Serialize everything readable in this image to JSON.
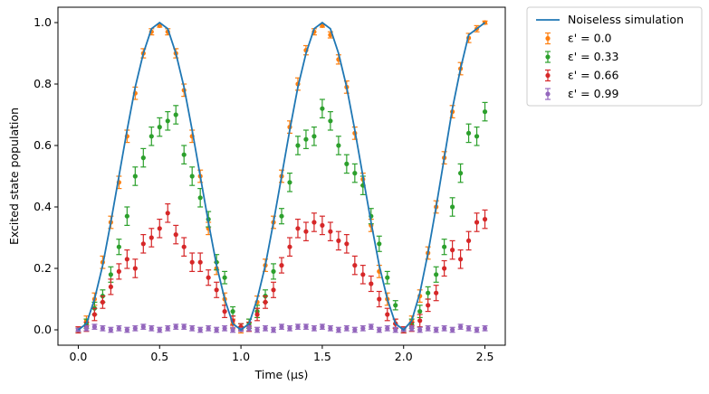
{
  "chart_data": {
    "type": "scatter",
    "xlabel": "Time (μs)",
    "ylabel": "Excited state population",
    "xlim": [
      -0.125,
      2.625
    ],
    "ylim": [
      -0.05,
      1.05
    ],
    "xticks": [
      0.0,
      0.5,
      1.0,
      1.5,
      2.0,
      2.5
    ],
    "xtick_labels": [
      "0.0",
      "0.5",
      "1.0",
      "1.5",
      "2.0",
      "2.5"
    ],
    "yticks": [
      0.0,
      0.2,
      0.4,
      0.6,
      0.8,
      1.0
    ],
    "ytick_labels": [
      "0.0",
      "0.2",
      "0.4",
      "0.6",
      "0.8",
      "1.0"
    ],
    "grid": false,
    "legend_position": "outside-right-top",
    "line": {
      "name": "Noiseless simulation",
      "color": "#1f77b4",
      "x": [
        0.0,
        0.05,
        0.1,
        0.15,
        0.2,
        0.25,
        0.3,
        0.35,
        0.4,
        0.45,
        0.5,
        0.55,
        0.6,
        0.65,
        0.7,
        0.75,
        0.8,
        0.85,
        0.9,
        0.95,
        1.0,
        1.05,
        1.1,
        1.15,
        1.2,
        1.25,
        1.3,
        1.35,
        1.4,
        1.45,
        1.5,
        1.55,
        1.6,
        1.65,
        1.7,
        1.75,
        1.8,
        1.85,
        1.9,
        1.95,
        2.0,
        2.05,
        2.1,
        2.15,
        2.2,
        2.25,
        2.3,
        2.35,
        2.4,
        2.45,
        2.5
      ],
      "y": [
        0.0,
        0.02,
        0.1,
        0.21,
        0.35,
        0.5,
        0.65,
        0.79,
        0.9,
        0.98,
        1.0,
        0.98,
        0.9,
        0.79,
        0.65,
        0.5,
        0.35,
        0.21,
        0.1,
        0.02,
        0.0,
        0.02,
        0.1,
        0.21,
        0.35,
        0.5,
        0.65,
        0.79,
        0.9,
        0.98,
        1.0,
        0.98,
        0.9,
        0.79,
        0.65,
        0.5,
        0.35,
        0.21,
        0.1,
        0.02,
        0.0,
        0.03,
        0.12,
        0.25,
        0.4,
        0.56,
        0.72,
        0.85,
        0.96,
        0.98,
        1.0
      ]
    },
    "series": [
      {
        "name": "ε' = 0.0",
        "color": "#ff7f0e",
        "x": [
          0.0,
          0.05,
          0.1,
          0.15,
          0.2,
          0.25,
          0.3,
          0.35,
          0.4,
          0.45,
          0.5,
          0.55,
          0.6,
          0.65,
          0.7,
          0.75,
          0.8,
          0.85,
          0.9,
          0.95,
          1.0,
          1.05,
          1.1,
          1.15,
          1.2,
          1.25,
          1.3,
          1.35,
          1.4,
          1.45,
          1.5,
          1.55,
          1.6,
          1.65,
          1.7,
          1.75,
          1.8,
          1.85,
          1.9,
          1.95,
          2.0,
          2.05,
          2.1,
          2.15,
          2.2,
          2.25,
          2.3,
          2.35,
          2.4,
          2.45,
          2.5
        ],
        "y": [
          0.0,
          0.03,
          0.1,
          0.22,
          0.35,
          0.48,
          0.63,
          0.77,
          0.9,
          0.97,
          0.99,
          0.97,
          0.9,
          0.78,
          0.63,
          0.5,
          0.33,
          0.2,
          0.1,
          0.02,
          0.0,
          0.02,
          0.09,
          0.21,
          0.35,
          0.5,
          0.66,
          0.8,
          0.91,
          0.97,
          0.99,
          0.96,
          0.88,
          0.79,
          0.64,
          0.49,
          0.34,
          0.19,
          0.1,
          0.02,
          0.0,
          0.03,
          0.11,
          0.25,
          0.4,
          0.56,
          0.71,
          0.85,
          0.95,
          0.98,
          1.0
        ],
        "err": [
          0.01,
          0.015,
          0.02,
          0.02,
          0.02,
          0.02,
          0.02,
          0.02,
          0.015,
          0.01,
          0.005,
          0.01,
          0.015,
          0.02,
          0.02,
          0.02,
          0.02,
          0.02,
          0.02,
          0.015,
          0.01,
          0.015,
          0.02,
          0.02,
          0.02,
          0.02,
          0.02,
          0.02,
          0.015,
          0.01,
          0.005,
          0.01,
          0.015,
          0.02,
          0.02,
          0.02,
          0.02,
          0.02,
          0.02,
          0.015,
          0.01,
          0.015,
          0.02,
          0.02,
          0.02,
          0.02,
          0.02,
          0.02,
          0.015,
          0.01,
          0.005
        ]
      },
      {
        "name": "ε' = 0.33",
        "color": "#2ca02c",
        "x": [
          0.0,
          0.05,
          0.1,
          0.15,
          0.2,
          0.25,
          0.3,
          0.35,
          0.4,
          0.45,
          0.5,
          0.55,
          0.6,
          0.65,
          0.7,
          0.75,
          0.8,
          0.85,
          0.9,
          0.95,
          1.0,
          1.05,
          1.1,
          1.15,
          1.2,
          1.25,
          1.3,
          1.35,
          1.4,
          1.45,
          1.5,
          1.55,
          1.6,
          1.65,
          1.7,
          1.75,
          1.8,
          1.85,
          1.9,
          1.95,
          2.0,
          2.05,
          2.1,
          2.15,
          2.2,
          2.25,
          2.3,
          2.35,
          2.4,
          2.45,
          2.5
        ],
        "y": [
          0.0,
          0.02,
          0.07,
          0.11,
          0.18,
          0.27,
          0.37,
          0.5,
          0.56,
          0.63,
          0.66,
          0.68,
          0.7,
          0.57,
          0.5,
          0.43,
          0.36,
          0.22,
          0.17,
          0.06,
          0.01,
          0.02,
          0.06,
          0.11,
          0.19,
          0.37,
          0.48,
          0.6,
          0.62,
          0.63,
          0.72,
          0.68,
          0.6,
          0.54,
          0.51,
          0.47,
          0.37,
          0.28,
          0.17,
          0.08,
          0.0,
          0.02,
          0.06,
          0.12,
          0.18,
          0.27,
          0.4,
          0.51,
          0.64,
          0.63,
          0.71
        ],
        "err": [
          0.01,
          0.015,
          0.02,
          0.02,
          0.025,
          0.025,
          0.03,
          0.03,
          0.03,
          0.03,
          0.03,
          0.03,
          0.03,
          0.03,
          0.03,
          0.03,
          0.025,
          0.025,
          0.02,
          0.015,
          0.01,
          0.015,
          0.02,
          0.02,
          0.025,
          0.025,
          0.03,
          0.03,
          0.03,
          0.03,
          0.03,
          0.03,
          0.03,
          0.03,
          0.03,
          0.03,
          0.025,
          0.025,
          0.02,
          0.015,
          0.01,
          0.015,
          0.02,
          0.02,
          0.025,
          0.025,
          0.03,
          0.03,
          0.03,
          0.03,
          0.03
        ]
      },
      {
        "name": "ε' = 0.66",
        "color": "#d62728",
        "x": [
          0.0,
          0.05,
          0.1,
          0.15,
          0.2,
          0.25,
          0.3,
          0.35,
          0.4,
          0.45,
          0.5,
          0.55,
          0.6,
          0.65,
          0.7,
          0.75,
          0.8,
          0.85,
          0.9,
          0.95,
          1.0,
          1.05,
          1.1,
          1.15,
          1.2,
          1.25,
          1.3,
          1.35,
          1.4,
          1.45,
          1.5,
          1.55,
          1.6,
          1.65,
          1.7,
          1.75,
          1.8,
          1.85,
          1.9,
          1.95,
          2.0,
          2.05,
          2.1,
          2.15,
          2.2,
          2.25,
          2.3,
          2.35,
          2.4,
          2.45,
          2.5
        ],
        "y": [
          0.0,
          0.01,
          0.05,
          0.09,
          0.14,
          0.19,
          0.23,
          0.2,
          0.28,
          0.3,
          0.33,
          0.38,
          0.31,
          0.27,
          0.22,
          0.22,
          0.17,
          0.13,
          0.06,
          0.03,
          0.01,
          0.01,
          0.05,
          0.09,
          0.13,
          0.21,
          0.27,
          0.33,
          0.32,
          0.35,
          0.34,
          0.32,
          0.29,
          0.28,
          0.21,
          0.18,
          0.15,
          0.1,
          0.05,
          0.02,
          0.0,
          0.01,
          0.03,
          0.08,
          0.12,
          0.2,
          0.26,
          0.23,
          0.29,
          0.35,
          0.36
        ],
        "err": [
          0.01,
          0.015,
          0.02,
          0.02,
          0.025,
          0.025,
          0.03,
          0.03,
          0.03,
          0.03,
          0.03,
          0.03,
          0.03,
          0.03,
          0.03,
          0.03,
          0.025,
          0.025,
          0.02,
          0.015,
          0.01,
          0.015,
          0.02,
          0.02,
          0.025,
          0.025,
          0.03,
          0.03,
          0.03,
          0.03,
          0.03,
          0.03,
          0.03,
          0.03,
          0.03,
          0.03,
          0.025,
          0.025,
          0.02,
          0.015,
          0.01,
          0.015,
          0.02,
          0.02,
          0.025,
          0.025,
          0.03,
          0.03,
          0.03,
          0.03,
          0.03
        ]
      },
      {
        "name": "ε' = 0.99",
        "color": "#9467bd",
        "x": [
          0.0,
          0.05,
          0.1,
          0.15,
          0.2,
          0.25,
          0.3,
          0.35,
          0.4,
          0.45,
          0.5,
          0.55,
          0.6,
          0.65,
          0.7,
          0.75,
          0.8,
          0.85,
          0.9,
          0.95,
          1.0,
          1.05,
          1.1,
          1.15,
          1.2,
          1.25,
          1.3,
          1.35,
          1.4,
          1.45,
          1.5,
          1.55,
          1.6,
          1.65,
          1.7,
          1.75,
          1.8,
          1.85,
          1.9,
          1.95,
          2.0,
          2.05,
          2.1,
          2.15,
          2.2,
          2.25,
          2.3,
          2.35,
          2.4,
          2.45,
          2.5
        ],
        "y": [
          0.0,
          0.005,
          0.01,
          0.005,
          0.0,
          0.005,
          0.0,
          0.005,
          0.01,
          0.005,
          0.0,
          0.005,
          0.01,
          0.01,
          0.005,
          0.0,
          0.005,
          0.0,
          0.005,
          0.0,
          0.0,
          0.005,
          0.0,
          0.005,
          0.0,
          0.01,
          0.005,
          0.01,
          0.01,
          0.005,
          0.01,
          0.005,
          0.0,
          0.005,
          0.0,
          0.005,
          0.01,
          0.0,
          0.005,
          0.0,
          0.0,
          0.005,
          0.0,
          0.005,
          0.0,
          0.005,
          0.0,
          0.01,
          0.005,
          0.0,
          0.005
        ],
        "err": [
          0.005,
          0.008,
          0.008,
          0.008,
          0.008,
          0.008,
          0.008,
          0.008,
          0.008,
          0.008,
          0.008,
          0.008,
          0.008,
          0.008,
          0.008,
          0.008,
          0.008,
          0.008,
          0.008,
          0.008,
          0.005,
          0.008,
          0.008,
          0.008,
          0.008,
          0.008,
          0.008,
          0.008,
          0.008,
          0.008,
          0.008,
          0.008,
          0.008,
          0.008,
          0.008,
          0.008,
          0.008,
          0.008,
          0.008,
          0.008,
          0.005,
          0.008,
          0.008,
          0.008,
          0.008,
          0.008,
          0.008,
          0.008,
          0.008,
          0.008,
          0.008
        ]
      }
    ]
  }
}
